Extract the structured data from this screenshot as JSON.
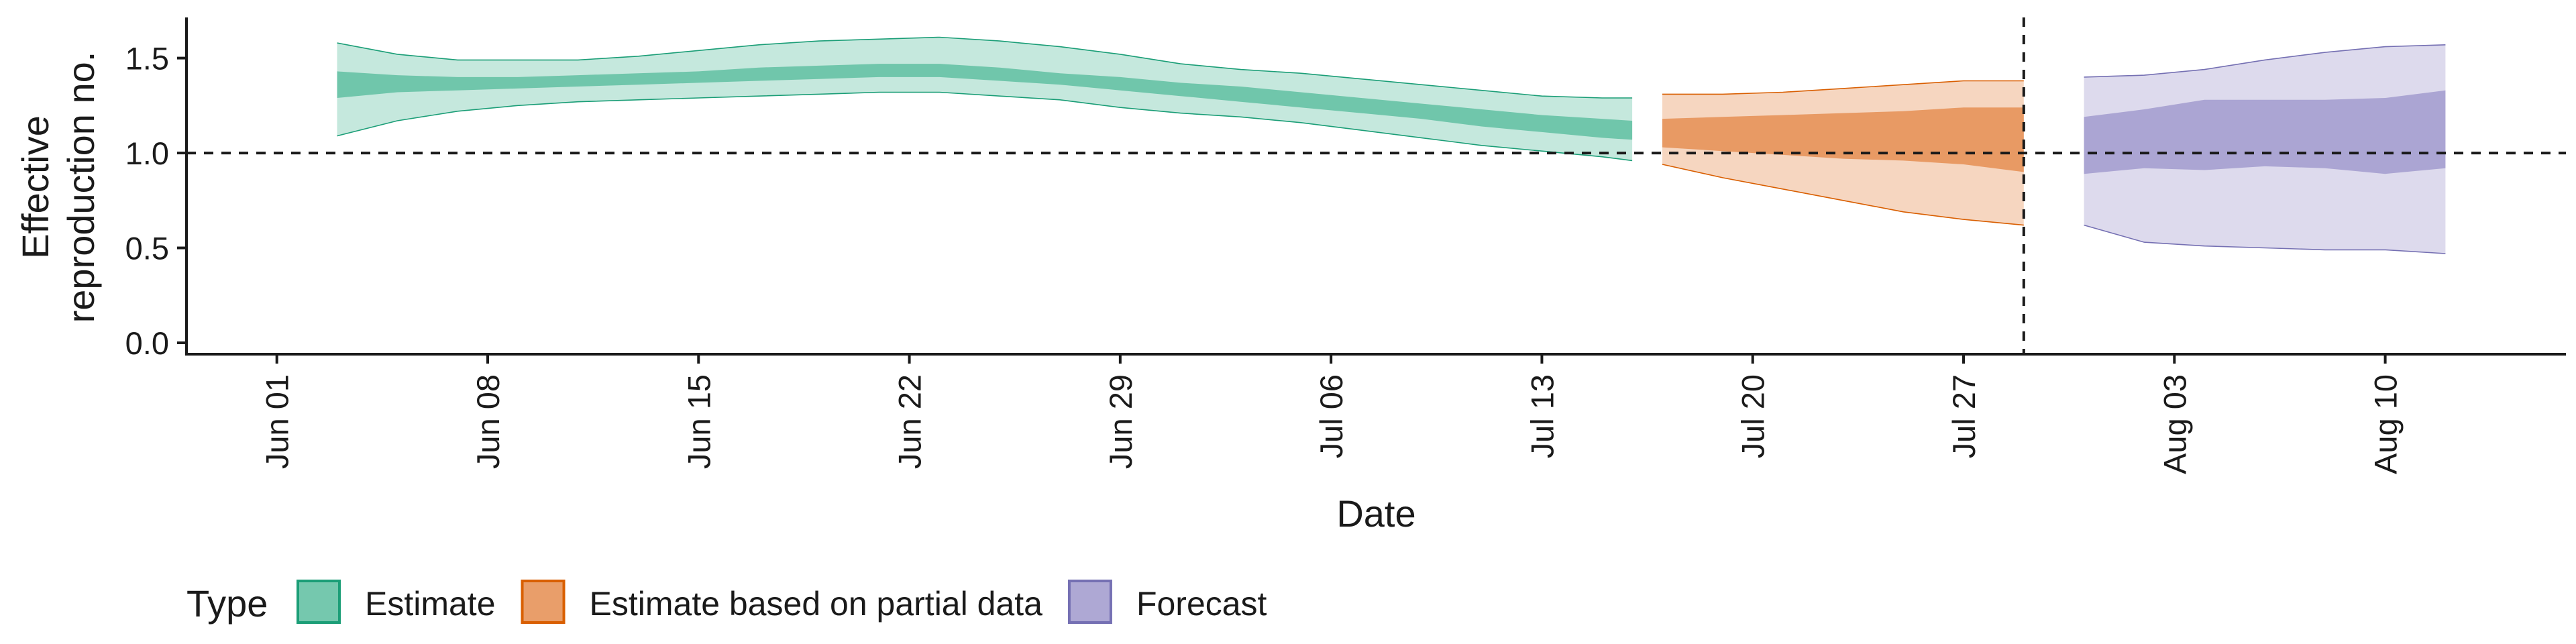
{
  "chart_data": {
    "type": "area",
    "title": "",
    "xlabel": "Date",
    "ylabel_lines": [
      "Effective",
      "reproduction no."
    ],
    "ylim": [
      -0.06,
      1.7
    ],
    "yticks": [
      {
        "value": 0.0,
        "label": "0.0"
      },
      {
        "value": 0.5,
        "label": "0.5"
      },
      {
        "value": 1.0,
        "label": "1.0"
      },
      {
        "value": 1.5,
        "label": "1.5"
      }
    ],
    "xlim": [
      "2020-05-29",
      "2020-08-16"
    ],
    "xticks": [
      {
        "date": "2020-06-01",
        "label": "Jun 01"
      },
      {
        "date": "2020-06-08",
        "label": "Jun 08"
      },
      {
        "date": "2020-06-15",
        "label": "Jun 15"
      },
      {
        "date": "2020-06-22",
        "label": "Jun 22"
      },
      {
        "date": "2020-06-29",
        "label": "Jun 29"
      },
      {
        "date": "2020-07-06",
        "label": "Jul 06"
      },
      {
        "date": "2020-07-13",
        "label": "Jul 13"
      },
      {
        "date": "2020-07-20",
        "label": "Jul 20"
      },
      {
        "date": "2020-07-27",
        "label": "Jul 27"
      },
      {
        "date": "2020-08-03",
        "label": "Aug 03"
      },
      {
        "date": "2020-08-10",
        "label": "Aug 10"
      }
    ],
    "reference_lines": [
      {
        "axis": "y",
        "value": 1.0,
        "style": "dashed"
      },
      {
        "axis": "x",
        "date": "2020-07-29",
        "style": "dashed"
      }
    ],
    "legend": {
      "title": "Type",
      "placement": "bottom"
    },
    "grid": false,
    "series": [
      {
        "name": "Estimate",
        "color_fill": "#66c2a5",
        "color_line": "#1b9e77",
        "x": [
          "2020-06-03",
          "2020-06-05",
          "2020-06-07",
          "2020-06-09",
          "2020-06-11",
          "2020-06-13",
          "2020-06-15",
          "2020-06-17",
          "2020-06-19",
          "2020-06-21",
          "2020-06-23",
          "2020-06-25",
          "2020-06-27",
          "2020-06-29",
          "2020-07-01",
          "2020-07-03",
          "2020-07-05",
          "2020-07-07",
          "2020-07-09",
          "2020-07-11",
          "2020-07-13",
          "2020-07-15",
          "2020-07-16"
        ],
        "outer_upper": [
          1.58,
          1.52,
          1.49,
          1.49,
          1.49,
          1.51,
          1.54,
          1.57,
          1.59,
          1.6,
          1.61,
          1.59,
          1.56,
          1.52,
          1.47,
          1.44,
          1.42,
          1.39,
          1.36,
          1.33,
          1.3,
          1.29,
          1.29
        ],
        "outer_lower": [
          1.09,
          1.17,
          1.22,
          1.25,
          1.27,
          1.28,
          1.29,
          1.3,
          1.31,
          1.32,
          1.32,
          1.3,
          1.28,
          1.24,
          1.21,
          1.19,
          1.16,
          1.12,
          1.08,
          1.04,
          1.01,
          0.98,
          0.96
        ],
        "inner_upper": [
          1.43,
          1.41,
          1.4,
          1.4,
          1.41,
          1.42,
          1.43,
          1.45,
          1.46,
          1.47,
          1.47,
          1.45,
          1.42,
          1.4,
          1.37,
          1.35,
          1.32,
          1.29,
          1.26,
          1.23,
          1.2,
          1.18,
          1.17
        ],
        "inner_lower": [
          1.29,
          1.32,
          1.33,
          1.34,
          1.35,
          1.36,
          1.37,
          1.38,
          1.39,
          1.4,
          1.4,
          1.38,
          1.36,
          1.33,
          1.3,
          1.27,
          1.24,
          1.21,
          1.18,
          1.14,
          1.11,
          1.08,
          1.07
        ]
      },
      {
        "name": "Estimate based on partial data",
        "color_fill": "#e7945a",
        "color_line": "#d95f02",
        "x": [
          "2020-07-17",
          "2020-07-19",
          "2020-07-21",
          "2020-07-23",
          "2020-07-25",
          "2020-07-27",
          "2020-07-29"
        ],
        "outer_upper": [
          1.31,
          1.31,
          1.32,
          1.34,
          1.36,
          1.38,
          1.38
        ],
        "outer_lower": [
          0.94,
          0.87,
          0.81,
          0.75,
          0.69,
          0.65,
          0.62
        ],
        "inner_upper": [
          1.18,
          1.19,
          1.2,
          1.21,
          1.22,
          1.24,
          1.24
        ],
        "inner_lower": [
          1.03,
          1.01,
          0.99,
          0.97,
          0.96,
          0.94,
          0.9
        ]
      },
      {
        "name": "Forecast",
        "color_fill": "#a59fcf",
        "color_line": "#7570b3",
        "x": [
          "2020-07-31",
          "2020-08-02",
          "2020-08-04",
          "2020-08-06",
          "2020-08-08",
          "2020-08-10",
          "2020-08-12"
        ],
        "outer_upper": [
          1.4,
          1.41,
          1.44,
          1.49,
          1.53,
          1.56,
          1.57
        ],
        "outer_lower": [
          0.62,
          0.53,
          0.51,
          0.5,
          0.49,
          0.49,
          0.47
        ],
        "inner_upper": [
          1.19,
          1.23,
          1.28,
          1.28,
          1.28,
          1.29,
          1.33
        ],
        "inner_lower": [
          0.89,
          0.92,
          0.91,
          0.93,
          0.92,
          0.89,
          0.92
        ]
      }
    ]
  }
}
